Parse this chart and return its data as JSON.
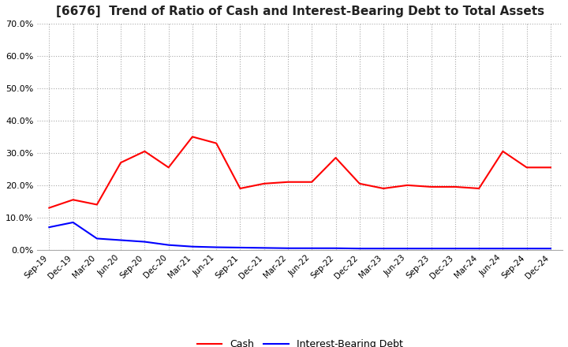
{
  "title": "[6676]  Trend of Ratio of Cash and Interest-Bearing Debt to Total Assets",
  "x_labels": [
    "Sep-19",
    "Dec-19",
    "Mar-20",
    "Jun-20",
    "Sep-20",
    "Dec-20",
    "Mar-21",
    "Jun-21",
    "Sep-21",
    "Dec-21",
    "Mar-22",
    "Jun-22",
    "Sep-22",
    "Dec-22",
    "Mar-23",
    "Jun-23",
    "Sep-23",
    "Dec-23",
    "Mar-24",
    "Jun-24",
    "Sep-24",
    "Dec-24"
  ],
  "cash": [
    13.0,
    15.5,
    14.0,
    27.0,
    30.5,
    25.5,
    35.0,
    33.0,
    19.0,
    20.5,
    21.0,
    21.0,
    28.5,
    20.5,
    19.0,
    20.0,
    19.5,
    19.5,
    19.0,
    30.5,
    25.5,
    25.5
  ],
  "interest_bearing_debt": [
    7.0,
    8.5,
    3.5,
    3.0,
    2.5,
    1.5,
    1.0,
    0.8,
    0.7,
    0.6,
    0.5,
    0.5,
    0.5,
    0.4,
    0.4,
    0.4,
    0.4,
    0.4,
    0.4,
    0.4,
    0.4,
    0.4
  ],
  "cash_color": "#FF0000",
  "debt_color": "#0000FF",
  "ylim": [
    0.0,
    70.0
  ],
  "yticks": [
    0.0,
    10.0,
    20.0,
    30.0,
    40.0,
    50.0,
    60.0,
    70.0
  ],
  "title_fontsize": 11,
  "legend_labels": [
    "Cash",
    "Interest-Bearing Debt"
  ],
  "background_color": "#ffffff"
}
